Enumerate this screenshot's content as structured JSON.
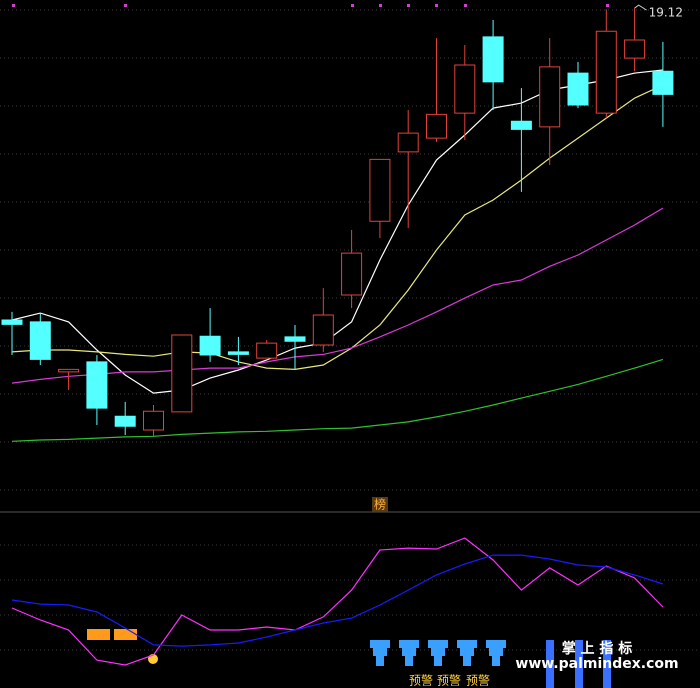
{
  "chart_data": [
    {
      "type": "candlestick",
      "open": [
        14.13,
        14.1,
        13.3,
        13.46,
        12.59,
        12.37,
        12.66,
        13.87,
        13.62,
        13.52,
        13.86,
        13.73,
        14.53,
        15.71,
        16.82,
        17.04,
        17.44,
        18.66,
        17.31,
        17.22,
        18.08,
        17.44,
        18.32,
        18.11
      ],
      "high": [
        14.26,
        14.24,
        13.34,
        13.57,
        12.82,
        12.77,
        13.9,
        14.32,
        13.86,
        13.81,
        14.05,
        14.64,
        15.57,
        16.7,
        17.49,
        18.64,
        18.53,
        18.93,
        17.84,
        18.64,
        18.26,
        19.1,
        19.12,
        18.58
      ],
      "low": [
        13.57,
        13.41,
        13.01,
        12.45,
        12.29,
        12.27,
        12.66,
        13.46,
        13.41,
        13.52,
        13.33,
        13.62,
        14.32,
        15.44,
        15.6,
        16.98,
        17.01,
        17.49,
        16.18,
        16.61,
        17.52,
        17.36,
        18.11,
        17.22
      ],
      "close": [
        14.06,
        13.5,
        13.34,
        12.72,
        12.43,
        12.67,
        13.89,
        13.57,
        13.58,
        13.76,
        13.79,
        14.21,
        15.2,
        16.7,
        17.12,
        17.42,
        18.21,
        17.94,
        17.18,
        18.18,
        17.57,
        18.75,
        18.61,
        17.74
      ],
      "up_color": "#e0433a",
      "down_color": "#54ffff",
      "series": [
        {
          "color": "#ffffff",
          "values": [
            14.13,
            14.24,
            14.1,
            13.65,
            13.25,
            12.96,
            13.01,
            13.2,
            13.33,
            13.49,
            13.68,
            13.76,
            14.1,
            15.09,
            15.97,
            16.69,
            17.09,
            17.52,
            17.6,
            17.81,
            17.89,
            17.97,
            18.08,
            18.13
          ]
        },
        {
          "color": "#e8e87a",
          "values": [
            13.62,
            13.65,
            13.65,
            13.62,
            13.58,
            13.55,
            13.62,
            13.6,
            13.46,
            13.36,
            13.34,
            13.41,
            13.68,
            14.05,
            14.61,
            15.25,
            15.81,
            16.05,
            16.37,
            16.72,
            17.04,
            17.36,
            17.68,
            17.89
          ]
        },
        {
          "color": "#d83ad8",
          "values": [
            13.12,
            13.18,
            13.23,
            13.26,
            13.3,
            13.3,
            13.33,
            13.36,
            13.36,
            13.46,
            13.54,
            13.58,
            13.68,
            13.86,
            14.05,
            14.26,
            14.48,
            14.69,
            14.77,
            14.99,
            15.17,
            15.41,
            15.65,
            15.92
          ]
        },
        {
          "color": "#30c030",
          "values": [
            12.19,
            12.21,
            12.22,
            12.24,
            12.26,
            12.27,
            12.3,
            12.32,
            12.34,
            12.35,
            12.37,
            12.39,
            12.4,
            12.45,
            12.5,
            12.58,
            12.67,
            12.77,
            12.88,
            12.99,
            13.1,
            13.23,
            13.36,
            13.5
          ]
        }
      ],
      "ylim": [
        11.09,
        19.25
      ]
    },
    {
      "type": "line",
      "series": [
        {
          "color": "#ff30ff",
          "values": [
            44.3,
            35.7,
            28.6,
            7.1,
            3.6,
            10.7,
            39.3,
            28.6,
            28.6,
            30.7,
            28.6,
            37.9,
            57.1,
            85.7,
            87.1,
            86.4,
            94.3,
            78.6,
            57.1,
            72.9,
            60.7,
            74.3,
            65.7,
            45.0
          ]
        },
        {
          "color": "#1a1aff",
          "values": [
            50,
            47.1,
            46.4,
            41.4,
            30,
            17.9,
            17.1,
            17.9,
            19.3,
            23.6,
            28.6,
            33.6,
            37.1,
            46.4,
            57.1,
            67.9,
            75.7,
            82.1,
            82.1,
            79.3,
            75,
            73.6,
            67.9,
            61.4
          ]
        }
      ],
      "ylim": [
        0,
        100
      ],
      "annotations": {
        "rank": "榜",
        "alerts": [
          "预警",
          "预警",
          "预警"
        ],
        "brand": "掌 上 指 标",
        "url": "www.palmindex.com"
      }
    }
  ]
}
